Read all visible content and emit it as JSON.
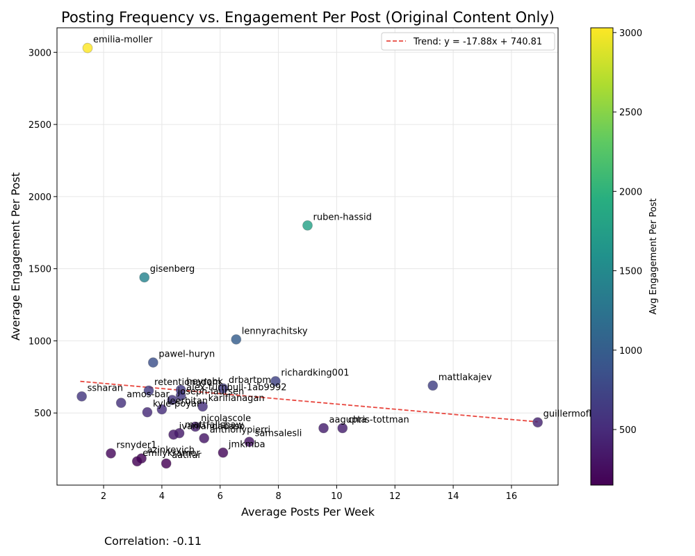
{
  "chart_data": {
    "type": "scatter",
    "title": "Posting Frequency vs. Engagement Per Post (Original Content Only)",
    "xlabel": "Average Posts Per Week",
    "ylabel": "Average Engagement Per Post",
    "xlim": [
      0.4,
      17.6
    ],
    "ylim": [
      0,
      3170
    ],
    "xticks": [
      2,
      4,
      6,
      8,
      10,
      12,
      14,
      16
    ],
    "yticks": [
      500,
      1000,
      1500,
      2000,
      2500,
      3000
    ],
    "grid": true,
    "colormap": "viridis",
    "colorbar": {
      "label": "Avg Engagement Per Post",
      "range": [
        150,
        3030
      ],
      "ticks": [
        500,
        1000,
        1500,
        2000,
        2500,
        3000
      ]
    },
    "trend": {
      "label": "Trend: y = -17.88x + 740.81",
      "slope": -17.88,
      "intercept": 740.81,
      "x_range": [
        1.2,
        16.9
      ],
      "color": "#e8473f"
    },
    "legend_position": "top-right",
    "correlation_text": "Correlation: -0.11",
    "points": [
      {
        "name": "emilia-moller",
        "x": 1.45,
        "y": 3030
      },
      {
        "name": "ruben-hassid",
        "x": 9.0,
        "y": 1800
      },
      {
        "name": "gisenberg",
        "x": 3.4,
        "y": 1440
      },
      {
        "name": "lennyrachitsky",
        "x": 6.55,
        "y": 1010
      },
      {
        "name": "pawel-huryn",
        "x": 3.7,
        "y": 850
      },
      {
        "name": "richardking001",
        "x": 7.9,
        "y": 720
      },
      {
        "name": "mattlakajev",
        "x": 13.3,
        "y": 690
      },
      {
        "name": "drbartpm",
        "x": 6.1,
        "y": 670
      },
      {
        "name": "heyrobk",
        "x": 4.65,
        "y": 660
      },
      {
        "name": "retentionadam",
        "x": 3.55,
        "y": 655
      },
      {
        "name": "alex-turnbull-1ab9992",
        "x": 4.65,
        "y": 620
      },
      {
        "name": "ssharan",
        "x": 1.25,
        "y": 615
      },
      {
        "name": "joseph-laursen",
        "x": 4.35,
        "y": 590
      },
      {
        "name": "amos-bar",
        "x": 2.6,
        "y": 570
      },
      {
        "name": "karlflanagan",
        "x": 5.4,
        "y": 545
      },
      {
        "name": "leerbitan",
        "x": 4.0,
        "y": 525
      },
      {
        "name": "kyle-poyar",
        "x": 3.5,
        "y": 505
      },
      {
        "name": "guillermoflor",
        "x": 16.9,
        "y": 435
      },
      {
        "name": "nicolascole",
        "x": 5.15,
        "y": 405
      },
      {
        "name": "aagupta",
        "x": 9.55,
        "y": 395
      },
      {
        "name": "chris-tottman",
        "x": 10.2,
        "y": 395
      },
      {
        "name": "mattfallshaw",
        "x": 4.6,
        "y": 360
      },
      {
        "name": "ivanlandabaso",
        "x": 4.4,
        "y": 350
      },
      {
        "name": "anthonypierri",
        "x": 5.45,
        "y": 325
      },
      {
        "name": "samsalesli",
        "x": 7.0,
        "y": 300
      },
      {
        "name": "jmkmba",
        "x": 6.1,
        "y": 225
      },
      {
        "name": "rsnyder1",
        "x": 2.25,
        "y": 220
      },
      {
        "name": "azinkevich",
        "x": 3.3,
        "y": 185
      },
      {
        "name": "emilykramer",
        "x": 3.15,
        "y": 165
      },
      {
        "name": "aatifar",
        "x": 4.15,
        "y": 150
      }
    ]
  }
}
